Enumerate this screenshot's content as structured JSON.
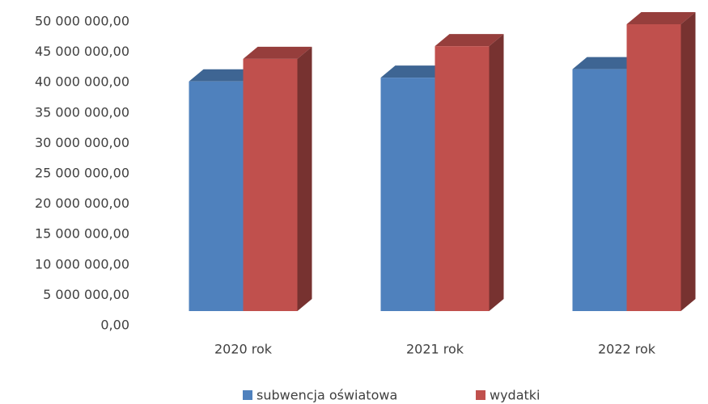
{
  "chart_data": {
    "type": "bar3d",
    "categories": [
      "2020 rok",
      "2021 rok",
      "2022 rok"
    ],
    "series": [
      {
        "name": "subwencja oświatowa",
        "color": "#4f81bd",
        "values": [
          40200000,
          40800000,
          42200000
        ]
      },
      {
        "name": "wydatki",
        "color": "#c0504d",
        "values": [
          43900000,
          46000000,
          49600000
        ]
      }
    ],
    "ylim": [
      0,
      50000000
    ],
    "yticks": [
      {
        "value": 0,
        "label": "0,00"
      },
      {
        "value": 5000000,
        "label": "5 000 000,00"
      },
      {
        "value": 10000000,
        "label": "10 000 000,00"
      },
      {
        "value": 15000000,
        "label": "15 000 000,00"
      },
      {
        "value": 20000000,
        "label": "20 000 000,00"
      },
      {
        "value": 25000000,
        "label": "25 000 000,00"
      },
      {
        "value": 30000000,
        "label": "30 000 000,00"
      },
      {
        "value": 35000000,
        "label": "35 000 000,00"
      },
      {
        "value": 40000000,
        "label": "40 000 000,00"
      },
      {
        "value": 45000000,
        "label": "45 000 000,00"
      },
      {
        "value": 50000000,
        "label": "50 000 000,00"
      }
    ],
    "legend": "bottom"
  }
}
